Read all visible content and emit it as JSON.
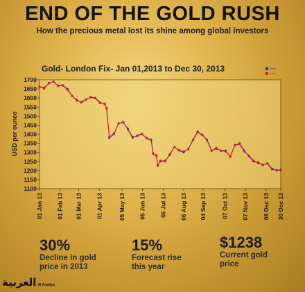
{
  "header": {
    "title": "END OF THE GOLD RUSH",
    "subtitle": "How the precious metal lost its shine among global investors"
  },
  "chart_data": {
    "type": "line",
    "title": "Gold- London Fix- Jan 01,2013 to Dec 30, 2013",
    "ylabel": "USD per ounce",
    "xlabel": "",
    "ylim": [
      1100,
      1700
    ],
    "yticks": [
      1700,
      1650,
      1600,
      1550,
      1500,
      1450,
      1400,
      1350,
      1300,
      1250,
      1200,
      1150,
      1100
    ],
    "grid": false,
    "legend_position": "top-right",
    "x_tick_labels": [
      "01 Jan 13",
      "01 Feb 13",
      "01 Mar 13",
      "01 Apr 13",
      "05 May 13",
      "05 Jun 13",
      "06 Jul 13",
      "06 Aug 13",
      "04 Sep 13",
      "07 Oct 13",
      "07 Nov 13",
      "08 Dec 13",
      "30 Dec 13"
    ],
    "series": [
      {
        "name": "",
        "color": "#2b2fa6",
        "x": [
          "01 Jan 13",
          "08 Jan 13",
          "15 Jan 13",
          "22 Jan 13",
          "29 Jan 13",
          "05 Feb 13",
          "12 Feb 13",
          "19 Feb 13",
          "26 Feb 13",
          "05 Mar 13",
          "12 Mar 13",
          "19 Mar 13",
          "26 Mar 13",
          "02 Apr 13",
          "09 Apr 13",
          "12 Apr 13",
          "16 Apr 13",
          "23 Apr 13",
          "30 Apr 13",
          "07 May 13",
          "14 May 13",
          "21 May 13",
          "28 May 13",
          "04 Jun 13",
          "11 Jun 13",
          "18 Jun 13",
          "21 Jun 13",
          "26 Jun 13",
          "28 Jun 13",
          "02 Jul 13",
          "09 Jul 13",
          "16 Jul 13",
          "23 Jul 13",
          "30 Jul 13",
          "06 Aug 13",
          "13 Aug 13",
          "20 Aug 13",
          "27 Aug 13",
          "03 Sep 13",
          "10 Sep 13",
          "17 Sep 13",
          "24 Sep 13",
          "01 Oct 13",
          "08 Oct 13",
          "15 Oct 13",
          "22 Oct 13",
          "29 Oct 13",
          "05 Nov 13",
          "12 Nov 13",
          "19 Nov 13",
          "26 Nov 13",
          "03 Dec 13",
          "10 Dec 13",
          "17 Dec 13",
          "24 Dec 13",
          "30 Dec 13"
        ],
        "values": [
          1660,
          1655,
          1680,
          1690,
          1665,
          1670,
          1650,
          1610,
          1590,
          1575,
          1590,
          1605,
          1600,
          1575,
          1565,
          1545,
          1380,
          1400,
          1460,
          1465,
          1430,
          1385,
          1390,
          1400,
          1380,
          1370,
          1295,
          1280,
          1230,
          1250,
          1255,
          1285,
          1330,
          1310,
          1300,
          1320,
          1370,
          1415,
          1395,
          1370,
          1310,
          1320,
          1310,
          1310,
          1275,
          1340,
          1350,
          1310,
          1280,
          1250,
          1245,
          1230,
          1240,
          1210,
          1200,
          1205
        ]
      },
      {
        "name": "",
        "color": "#d42020",
        "x": [
          "01 Jan 13",
          "08 Jan 13",
          "15 Jan 13",
          "22 Jan 13",
          "29 Jan 13",
          "05 Feb 13",
          "12 Feb 13",
          "19 Feb 13",
          "26 Feb 13",
          "05 Mar 13",
          "12 Mar 13",
          "19 Mar 13",
          "26 Mar 13",
          "02 Apr 13",
          "09 Apr 13",
          "12 Apr 13",
          "16 Apr 13",
          "23 Apr 13",
          "30 Apr 13",
          "07 May 13",
          "14 May 13",
          "21 May 13",
          "28 May 13",
          "04 Jun 13",
          "11 Jun 13",
          "18 Jun 13",
          "21 Jun 13",
          "26 Jun 13",
          "28 Jun 13",
          "02 Jul 13",
          "09 Jul 13",
          "16 Jul 13",
          "23 Jul 13",
          "30 Jul 13",
          "06 Aug 13",
          "13 Aug 13",
          "20 Aug 13",
          "27 Aug 13",
          "03 Sep 13",
          "10 Sep 13",
          "17 Sep 13",
          "24 Sep 13",
          "01 Oct 13",
          "08 Oct 13",
          "15 Oct 13",
          "22 Oct 13",
          "29 Oct 13",
          "05 Nov 13",
          "12 Nov 13",
          "19 Nov 13",
          "26 Nov 13",
          "03 Dec 13",
          "10 Dec 13",
          "17 Dec 13",
          "24 Dec 13",
          "30 Dec 13"
        ],
        "values": [
          1663,
          1650,
          1683,
          1688,
          1668,
          1668,
          1645,
          1612,
          1585,
          1578,
          1593,
          1602,
          1598,
          1572,
          1568,
          1540,
          1385,
          1405,
          1458,
          1468,
          1425,
          1380,
          1393,
          1403,
          1378,
          1365,
          1290,
          1285,
          1225,
          1255,
          1250,
          1290,
          1328,
          1313,
          1305,
          1318,
          1368,
          1410,
          1398,
          1365,
          1308,
          1325,
          1308,
          1305,
          1278,
          1338,
          1345,
          1305,
          1283,
          1255,
          1240,
          1233,
          1238,
          1205,
          1203,
          1200
        ]
      }
    ]
  },
  "stats": [
    {
      "value": "30%",
      "label_line1": "Decline in gold",
      "label_line2": "price in 2013"
    },
    {
      "value": "15%",
      "label_line1": "Forecast rise",
      "label_line2": "this year"
    },
    {
      "value": "$1238",
      "label_line1": "Current gold",
      "label_line2": "price"
    }
  ],
  "logo": {
    "arabic": "العربية",
    "english": "Al Arabiya"
  },
  "colors": {
    "background": "#d9ad45",
    "plot_area": "#eed37c",
    "text": "#111111"
  }
}
